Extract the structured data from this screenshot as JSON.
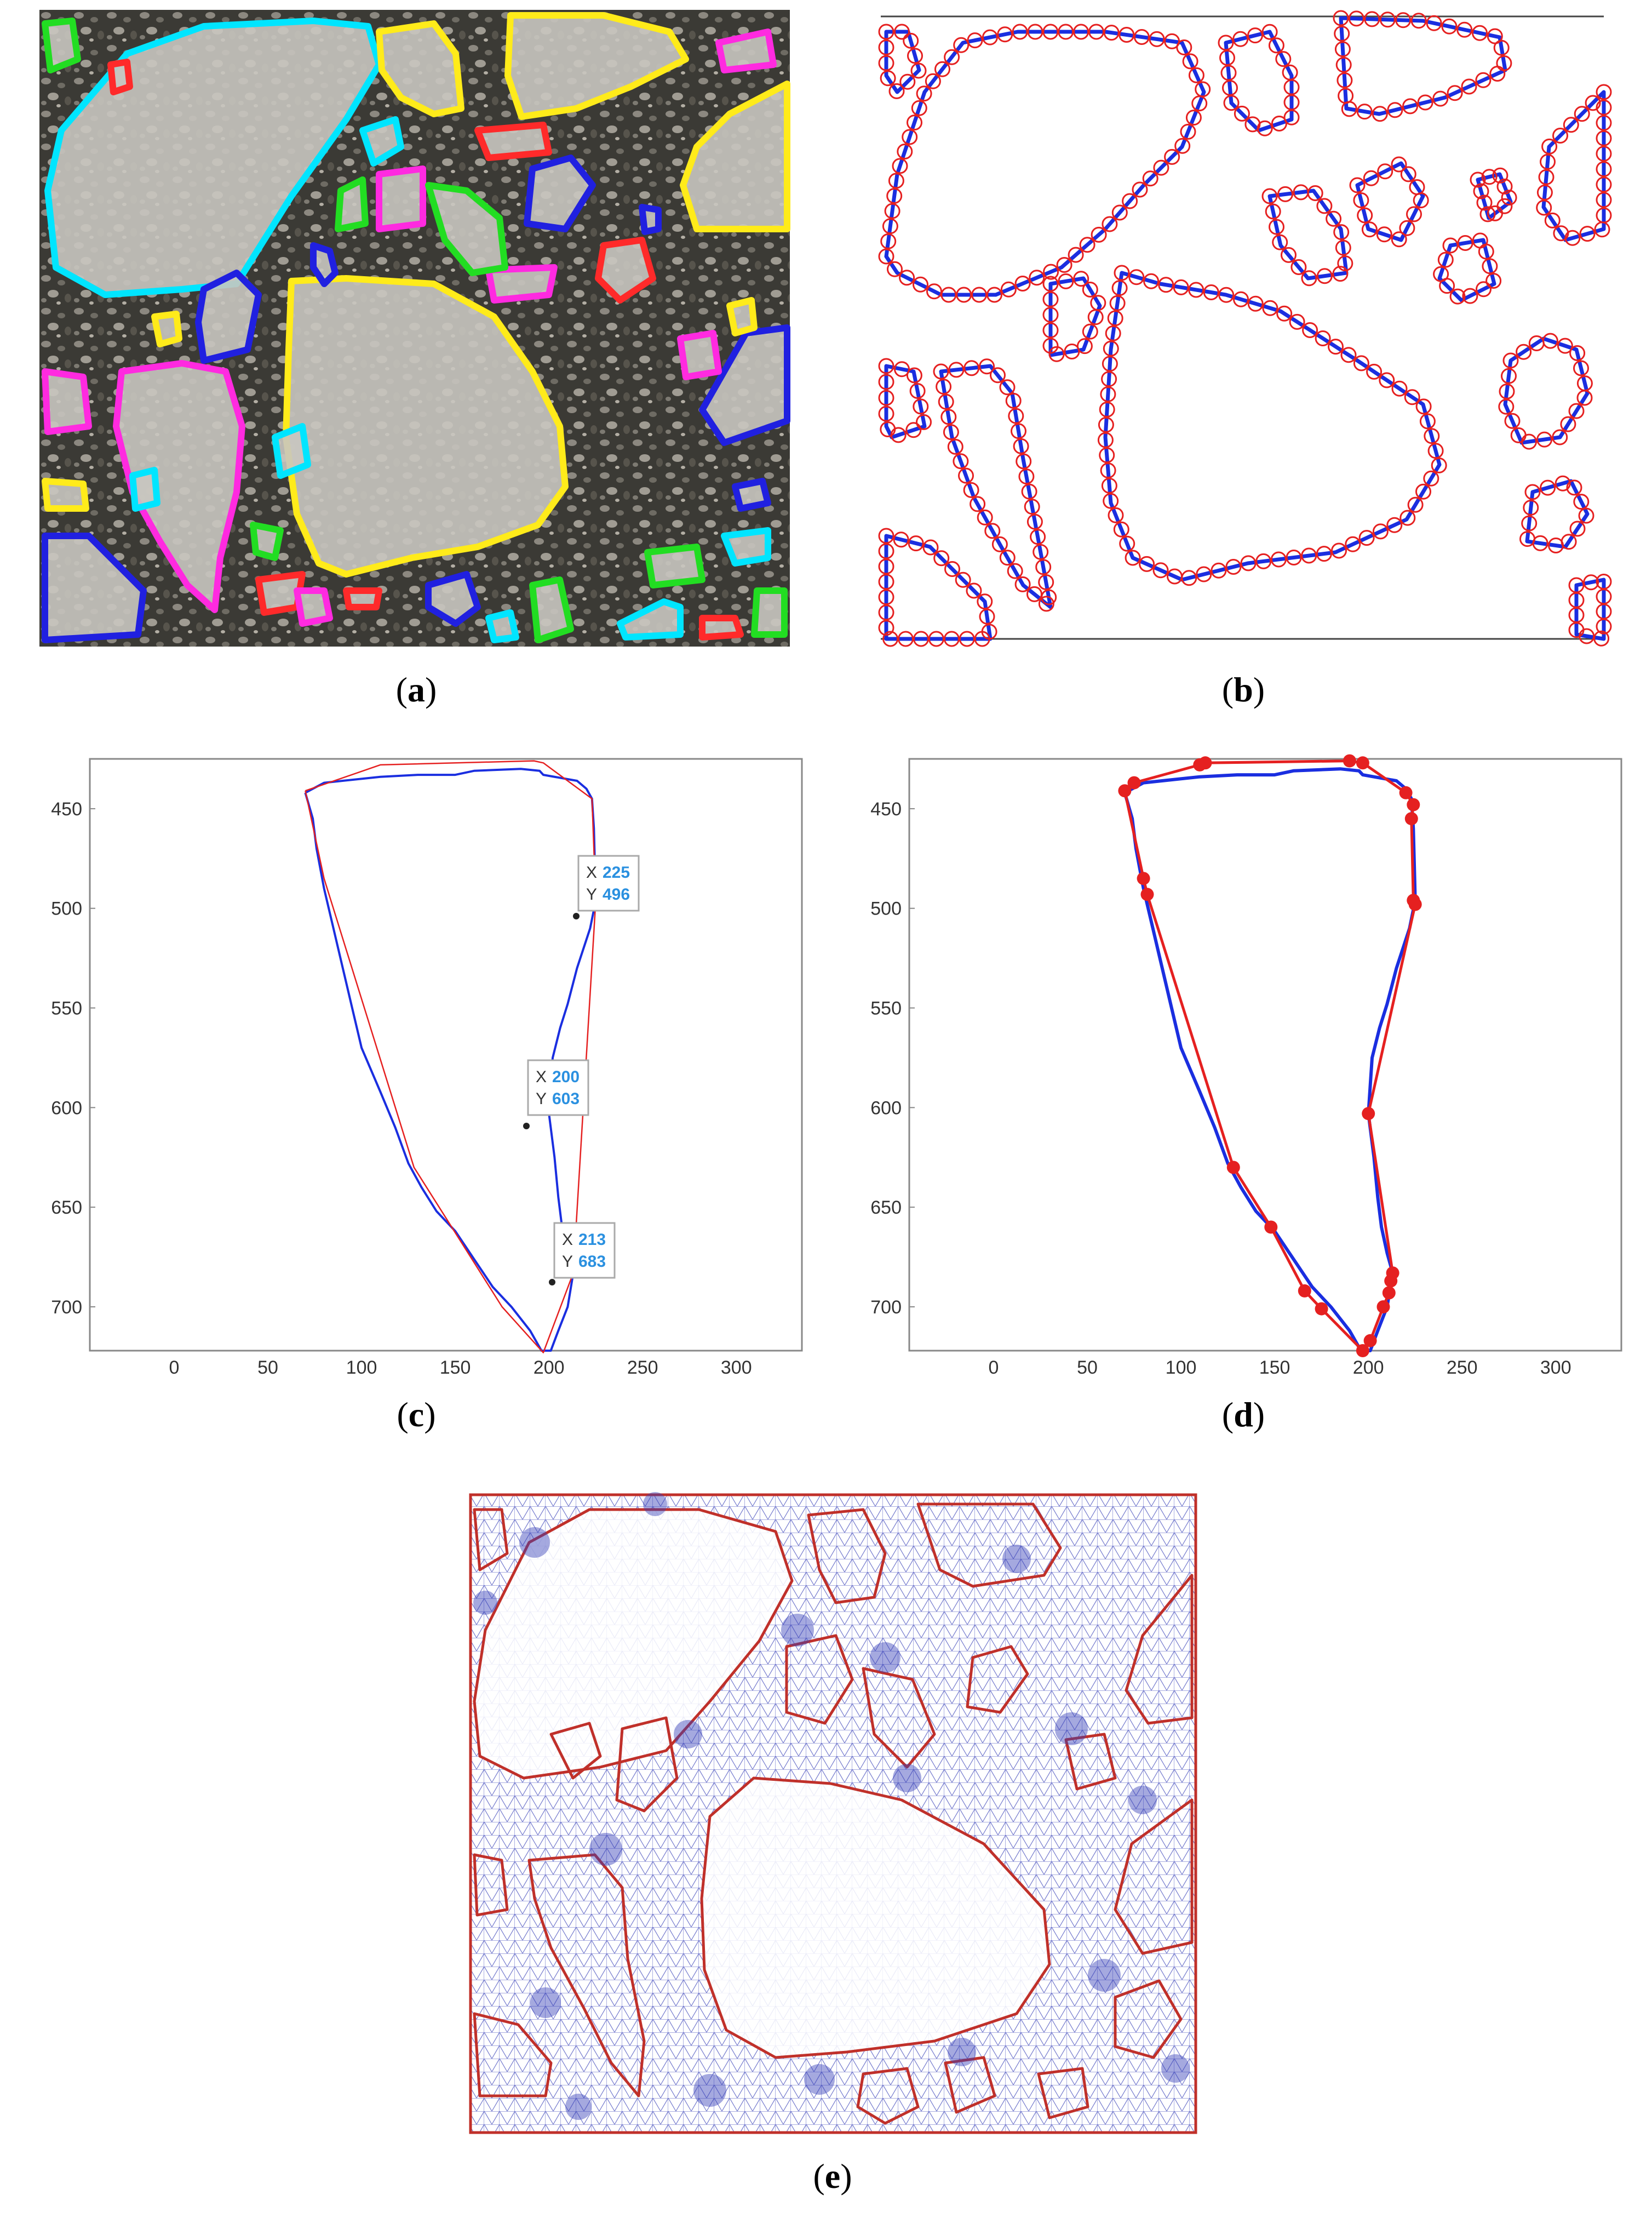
{
  "captions": {
    "a": "a",
    "b": "b",
    "c": "c",
    "d": "d",
    "e": "e"
  },
  "colors": {
    "photo_background": "#3a3a35",
    "contour_red": "#ff3030",
    "contour_blue": "#1a2ee0",
    "mesh_blue": "#3840b8",
    "boundary_red": "#c0302a",
    "datatip_label": "#2a90e0",
    "outline_palette": [
      "#00e5ff",
      "#ffeb1a",
      "#ff2a2a",
      "#2020e0",
      "#ff2ae0",
      "#22dd22"
    ]
  },
  "datatips": [
    {
      "x_label": "X",
      "x_value": "225",
      "y_label": "Y",
      "y_value": "496"
    },
    {
      "x_label": "X",
      "x_value": "200",
      "y_label": "Y",
      "y_value": "603"
    },
    {
      "x_label": "X",
      "x_value": "213",
      "y_label": "Y",
      "y_value": "683"
    }
  ],
  "chart_data": [
    {
      "id": "c",
      "type": "line",
      "xlim": [
        -45,
        335
      ],
      "ylim": [
        722,
        425
      ],
      "y_reversed": true,
      "xticks": [
        "0",
        "50",
        "100",
        "150",
        "200",
        "250",
        "300"
      ],
      "yticks": [
        "450",
        "500",
        "550",
        "600",
        "650",
        "700"
      ],
      "series": [
        {
          "values_xy": [
            [
              70,
              442
            ],
            [
              80,
              437
            ],
            [
              110,
              434
            ],
            [
              130,
              433
            ],
            [
              150,
              433
            ],
            [
              160,
              431
            ],
            [
              185,
              430
            ],
            [
              195,
              431
            ],
            [
              197,
              433
            ],
            [
              215,
              436
            ],
            [
              220,
              440
            ],
            [
              223,
              445
            ],
            [
              224,
              460
            ],
            [
              225,
              496
            ],
            [
              222,
              510
            ],
            [
              215,
              530
            ],
            [
              210,
              548
            ],
            [
              206,
              560
            ],
            [
              202,
              575
            ],
            [
              200,
              603
            ],
            [
              203,
              625
            ],
            [
              205,
              645
            ],
            [
              207,
              660
            ],
            [
              210,
              673
            ],
            [
              213,
              683
            ],
            [
              210,
              700
            ],
            [
              205,
              712
            ],
            [
              201,
              722
            ],
            [
              196,
              722
            ],
            [
              190,
              712
            ],
            [
              180,
              700
            ],
            [
              170,
              690
            ],
            [
              160,
              676
            ],
            [
              150,
              662
            ],
            [
              140,
              652
            ],
            [
              132,
              640
            ],
            [
              125,
              628
            ],
            [
              118,
              610
            ],
            [
              110,
              592
            ],
            [
              100,
              570
            ],
            [
              95,
              550
            ],
            [
              90,
              530
            ],
            [
              85,
              510
            ],
            [
              80,
              490
            ],
            [
              76,
              470
            ],
            [
              74,
              455
            ],
            [
              70,
              442
            ]
          ]
        },
        {
          "values_xy": [
            [
              70,
              441
            ],
            [
              110,
              428
            ],
            [
              192,
              426
            ],
            [
              197,
              427
            ],
            [
              223,
              445
            ],
            [
              225,
              496
            ],
            [
              213,
              683
            ],
            [
              197,
              723
            ],
            [
              175,
              700
            ],
            [
              128,
              630
            ],
            [
              80,
              485
            ],
            [
              70,
              441
            ]
          ]
        }
      ]
    },
    {
      "id": "d",
      "type": "line",
      "xlim": [
        -45,
        335
      ],
      "ylim": [
        722,
        425
      ],
      "y_reversed": true,
      "xticks": [
        "0",
        "50",
        "100",
        "150",
        "200",
        "250",
        "300"
      ],
      "yticks": [
        "450",
        "500",
        "550",
        "600",
        "650",
        "700"
      ],
      "series": [
        {
          "values_xy": [
            [
              70,
              442
            ],
            [
              80,
              437
            ],
            [
              110,
              434
            ],
            [
              130,
              433
            ],
            [
              150,
              433
            ],
            [
              160,
              431
            ],
            [
              185,
              430
            ],
            [
              195,
              431
            ],
            [
              197,
              433
            ],
            [
              215,
              436
            ],
            [
              220,
              440
            ],
            [
              223,
              445
            ],
            [
              224,
              460
            ],
            [
              225,
              496
            ],
            [
              222,
              510
            ],
            [
              215,
              530
            ],
            [
              210,
              548
            ],
            [
              206,
              560
            ],
            [
              202,
              575
            ],
            [
              200,
              603
            ],
            [
              203,
              625
            ],
            [
              205,
              645
            ],
            [
              207,
              660
            ],
            [
              210,
              673
            ],
            [
              213,
              683
            ],
            [
              210,
              700
            ],
            [
              205,
              712
            ],
            [
              201,
              722
            ],
            [
              196,
              722
            ],
            [
              190,
              712
            ],
            [
              180,
              700
            ],
            [
              170,
              690
            ],
            [
              160,
              676
            ],
            [
              150,
              662
            ],
            [
              140,
              652
            ],
            [
              132,
              640
            ],
            [
              125,
              628
            ],
            [
              118,
              610
            ],
            [
              110,
              592
            ],
            [
              100,
              570
            ],
            [
              95,
              550
            ],
            [
              90,
              530
            ],
            [
              85,
              510
            ],
            [
              80,
              490
            ],
            [
              76,
              470
            ],
            [
              74,
              455
            ],
            [
              70,
              442
            ]
          ]
        },
        {
          "values_xy": [
            [
              70,
              441
            ],
            [
              75,
              437
            ],
            [
              110,
              428
            ],
            [
              113,
              427
            ],
            [
              190,
              426
            ],
            [
              197,
              427
            ],
            [
              220,
              442
            ],
            [
              224,
              448
            ],
            [
              223,
              455
            ],
            [
              224,
              496
            ],
            [
              225,
              498
            ],
            [
              200,
              603
            ],
            [
              213,
              683
            ],
            [
              212,
              687
            ],
            [
              211,
              693
            ],
            [
              208,
              700
            ],
            [
              201,
              717
            ],
            [
              197,
              722
            ],
            [
              175,
              701
            ],
            [
              166,
              692
            ],
            [
              148,
              660
            ],
            [
              128,
              630
            ],
            [
              82,
              493
            ],
            [
              80,
              485
            ],
            [
              70,
              441
            ]
          ]
        }
      ],
      "markers_xy": [
        [
          70,
          441
        ],
        [
          75,
          437
        ],
        [
          110,
          428
        ],
        [
          113,
          427
        ],
        [
          190,
          426
        ],
        [
          197,
          427
        ],
        [
          220,
          442
        ],
        [
          224,
          448
        ],
        [
          223,
          455
        ],
        [
          224,
          496
        ],
        [
          225,
          498
        ],
        [
          200,
          603
        ],
        [
          213,
          683
        ],
        [
          212,
          687
        ],
        [
          211,
          693
        ],
        [
          208,
          700
        ],
        [
          201,
          717
        ],
        [
          197,
          722
        ],
        [
          175,
          701
        ],
        [
          166,
          692
        ],
        [
          148,
          660
        ],
        [
          128,
          630
        ],
        [
          82,
          493
        ],
        [
          80,
          485
        ]
      ]
    }
  ]
}
